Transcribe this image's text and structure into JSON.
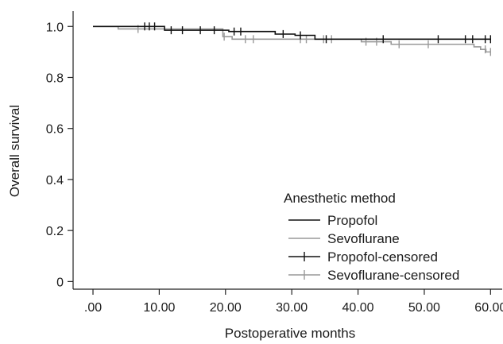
{
  "chart_data": {
    "type": "line",
    "title": "",
    "xlabel": "Postoperative months",
    "ylabel": "Overall survival",
    "xlim": [
      -3,
      62
    ],
    "ylim": [
      -0.03,
      1.06
    ],
    "x_ticks": [
      0,
      10,
      20,
      30,
      40,
      50,
      60
    ],
    "x_tick_labels": [
      ".00",
      "10.00",
      "20.00",
      "30.00",
      "40.00",
      "50.00",
      "60.00"
    ],
    "y_ticks": [
      0,
      0.2,
      0.4,
      0.6,
      0.8,
      1.0
    ],
    "y_tick_labels": [
      "0",
      "0.2",
      "0.4",
      "0.6",
      "0.8",
      "1.0"
    ],
    "grid": false,
    "legend": {
      "title": "Anesthetic method",
      "placement": "bottom-right",
      "entries": [
        "Propofol",
        "Sevoflurane",
        "Propofol-censored",
        "Sevoflurane-censored"
      ]
    },
    "series": [
      {
        "name": "Propofol",
        "color": "#111111",
        "steps": [
          [
            0,
            1.0
          ],
          [
            10.8,
            0.985
          ],
          [
            20.5,
            0.98
          ],
          [
            27.5,
            0.97
          ],
          [
            30.5,
            0.965
          ],
          [
            33.5,
            0.95
          ],
          [
            60,
            0.95
          ]
        ],
        "censored": [
          [
            7.8,
            1.0
          ],
          [
            8.5,
            1.0
          ],
          [
            9.3,
            1.0
          ],
          [
            11.8,
            0.985
          ],
          [
            13.5,
            0.985
          ],
          [
            16.2,
            0.985
          ],
          [
            18.3,
            0.985
          ],
          [
            21.3,
            0.98
          ],
          [
            22.3,
            0.98
          ],
          [
            28.7,
            0.97
          ],
          [
            31.3,
            0.965
          ],
          [
            35.2,
            0.95
          ],
          [
            43.8,
            0.95
          ],
          [
            52.1,
            0.95
          ],
          [
            56.2,
            0.95
          ],
          [
            57.3,
            0.95
          ],
          [
            59.2,
            0.95
          ],
          [
            60.0,
            0.95
          ]
        ]
      },
      {
        "name": "Sevoflurane",
        "color": "#999999",
        "steps": [
          [
            0,
            1.0
          ],
          [
            3.8,
            0.99
          ],
          [
            19.6,
            0.96
          ],
          [
            21.0,
            0.95
          ],
          [
            40.5,
            0.94
          ],
          [
            45.0,
            0.93
          ],
          [
            57.5,
            0.92
          ],
          [
            58.5,
            0.91
          ],
          [
            59.3,
            0.9
          ],
          [
            60,
            0.9
          ]
        ],
        "censored": [
          [
            6.8,
            0.99
          ],
          [
            19.8,
            0.96
          ],
          [
            23.0,
            0.95
          ],
          [
            24.2,
            0.95
          ],
          [
            31.3,
            0.95
          ],
          [
            32.2,
            0.95
          ],
          [
            34.8,
            0.95
          ],
          [
            36.0,
            0.95
          ],
          [
            41.2,
            0.94
          ],
          [
            42.8,
            0.94
          ],
          [
            46.2,
            0.93
          ],
          [
            50.6,
            0.93
          ],
          [
            59.2,
            0.91
          ],
          [
            60.0,
            0.9
          ]
        ]
      }
    ]
  }
}
